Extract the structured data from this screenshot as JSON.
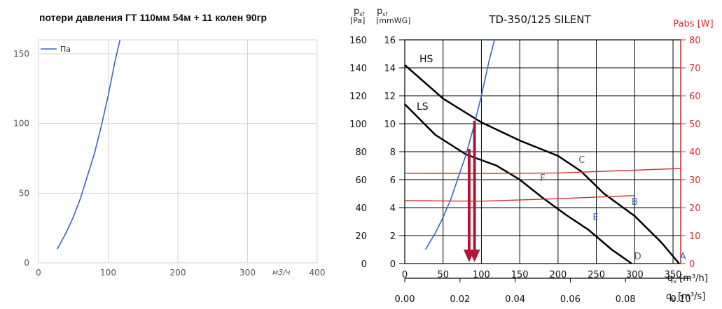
{
  "chart_data": [
    {
      "type": "line",
      "title": "потери давления ГТ 110мм 54м + 11 колен 90гр",
      "x_unit": "м3/ч",
      "xlim": [
        0,
        400
      ],
      "ylim": [
        0,
        160
      ],
      "x_ticks": [
        0,
        100,
        200,
        300,
        400
      ],
      "y_ticks": [
        0,
        50,
        100,
        150
      ],
      "grid": true,
      "legend_position": "top-left",
      "series": [
        {
          "name": "Па",
          "color": "#3a66b3",
          "x": [
            27,
            40,
            50,
            60,
            70,
            80,
            90,
            100,
            110,
            117
          ],
          "y": [
            10,
            22,
            33,
            46,
            62,
            78,
            98,
            120,
            145,
            160
          ]
        }
      ]
    },
    {
      "type": "line",
      "title": "TD-350/125 SILENT",
      "left_axis_label": [
        "p",
        "sf",
        "[Pa]"
      ],
      "second_axis_label": [
        "p",
        "sf",
        "[mmWG]"
      ],
      "right_axis_label": "Pabs [W]",
      "bottom_axis_label": [
        "q",
        "v",
        " [m³/h]"
      ],
      "bottom2_axis_label": [
        "q",
        "v",
        " [m³/s]"
      ],
      "ylim_pa": [
        0,
        160
      ],
      "ylim_mmwg": [
        0,
        16
      ],
      "ylim_w": [
        0,
        80
      ],
      "xlim_m3h": [
        0,
        360
      ],
      "pa_ticks": [
        0,
        20,
        40,
        60,
        80,
        100,
        120,
        140,
        160
      ],
      "mmwg_ticks": [
        0,
        2,
        4,
        6,
        8,
        10,
        12,
        14,
        16
      ],
      "w_ticks": [
        0,
        10,
        20,
        30,
        40,
        50,
        60,
        70,
        80
      ],
      "m3h_ticks": [
        0,
        50,
        100,
        150,
        200,
        250,
        300,
        350
      ],
      "m3s_ticks": [
        "0.00",
        "0.02",
        "0.04",
        "0.06",
        "0.08",
        "0.10"
      ],
      "colors": {
        "pressure": "#000000",
        "power": "#d03030",
        "system": "#3a66b3",
        "arrows": "#b0183a"
      },
      "series": [
        {
          "label": "HS",
          "axis": "pressure",
          "x": [
            0,
            50,
            100,
            150,
            200,
            230,
            260,
            300,
            335,
            358
          ],
          "y": [
            142,
            118,
            101,
            88,
            77,
            66,
            50,
            34,
            15,
            0
          ]
        },
        {
          "label": "LS",
          "axis": "pressure",
          "x": [
            0,
            40,
            80,
            120,
            150,
            180,
            210,
            240,
            270,
            296
          ],
          "y": [
            114,
            92,
            78,
            70,
            60,
            47,
            35,
            24,
            10,
            0
          ]
        },
        {
          "label": "",
          "axis": "power",
          "x": [
            0,
            100,
            200,
            360
          ],
          "y": [
            32.3,
            32.2,
            32.4,
            34.0
          ]
        },
        {
          "label": "",
          "axis": "power",
          "x": [
            0,
            100,
            200,
            300
          ],
          "y": [
            22.5,
            22.3,
            23.2,
            24.3
          ]
        },
        {
          "label": "",
          "axis": "system",
          "x": [
            27,
            40,
            50,
            60,
            70,
            80,
            90,
            100,
            110,
            117
          ],
          "y": [
            10,
            22,
            33,
            46,
            62,
            78,
            98,
            120,
            145,
            160
          ]
        }
      ],
      "point_labels": [
        {
          "text": "A",
          "x": 363,
          "y": 5
        },
        {
          "text": "B",
          "x": 300,
          "y": 44
        },
        {
          "text": "C",
          "x": 231,
          "y": 74
        },
        {
          "text": "D",
          "x": 304,
          "y": 5
        },
        {
          "text": "E",
          "x": 249,
          "y": 33
        },
        {
          "text": "F",
          "x": 180,
          "y": 61
        }
      ],
      "arrows": [
        {
          "x": 84,
          "y_from": 82,
          "y_to": 0
        },
        {
          "x": 91,
          "y_from": 102,
          "y_to": 0
        }
      ]
    }
  ]
}
